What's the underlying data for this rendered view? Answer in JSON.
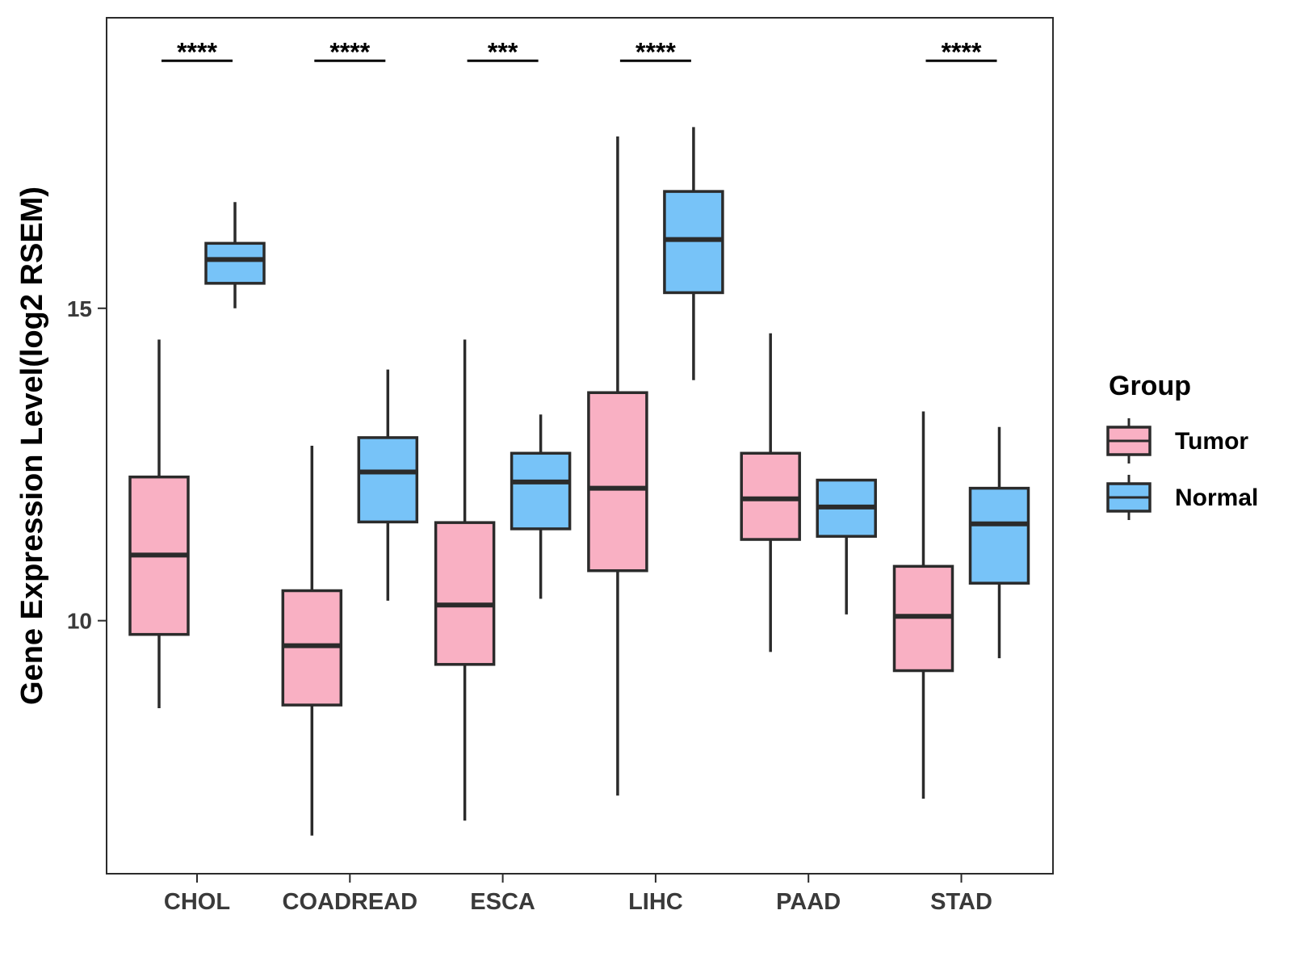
{
  "chart_data": {
    "type": "boxplot",
    "title": "",
    "xlabel": "",
    "ylabel": "Gene Expression Level(log2 RSEM)",
    "ylim": [
      5.95,
      19.65
    ],
    "yticks": [
      10,
      15
    ],
    "categories": [
      "CHOL",
      "COADREAD",
      "ESCA",
      "LIHC",
      "PAAD",
      "STAD"
    ],
    "legend": {
      "title": "Group",
      "position": "right",
      "entries": [
        "Tumor",
        "Normal"
      ]
    },
    "colors": {
      "Tumor": "#f9b0c3",
      "Normal": "#77c3f8",
      "outline": "#2b2b2b"
    },
    "series": [
      {
        "name": "Tumor",
        "boxes": [
          {
            "min": 8.6,
            "q1": 9.78,
            "median": 11.05,
            "q3": 12.3,
            "max": 14.5
          },
          {
            "min": 6.56,
            "q1": 8.65,
            "median": 9.6,
            "q3": 10.48,
            "max": 12.8
          },
          {
            "min": 6.8,
            "q1": 9.3,
            "median": 10.25,
            "q3": 11.57,
            "max": 14.5
          },
          {
            "min": 7.2,
            "q1": 10.8,
            "median": 12.12,
            "q3": 13.65,
            "max": 17.75
          },
          {
            "min": 9.5,
            "q1": 11.3,
            "median": 11.95,
            "q3": 12.68,
            "max": 14.6
          },
          {
            "min": 7.15,
            "q1": 9.2,
            "median": 10.07,
            "q3": 10.87,
            "max": 13.35
          }
        ]
      },
      {
        "name": "Normal",
        "boxes": [
          {
            "min": 15.0,
            "q1": 15.4,
            "median": 15.78,
            "q3": 16.04,
            "max": 16.7
          },
          {
            "min": 10.32,
            "q1": 11.58,
            "median": 12.38,
            "q3": 12.93,
            "max": 14.02
          },
          {
            "min": 10.35,
            "q1": 11.47,
            "median": 12.22,
            "q3": 12.68,
            "max": 13.3
          },
          {
            "min": 13.85,
            "q1": 15.25,
            "median": 16.1,
            "q3": 16.87,
            "max": 17.9
          },
          {
            "min": 10.1,
            "q1": 11.35,
            "median": 11.82,
            "q3": 12.25,
            "max": null
          },
          {
            "min": 9.4,
            "q1": 10.6,
            "median": 11.55,
            "q3": 12.12,
            "max": 13.1
          }
        ]
      }
    ],
    "significance": [
      "****",
      "****",
      "***",
      "****",
      "",
      "****"
    ]
  }
}
